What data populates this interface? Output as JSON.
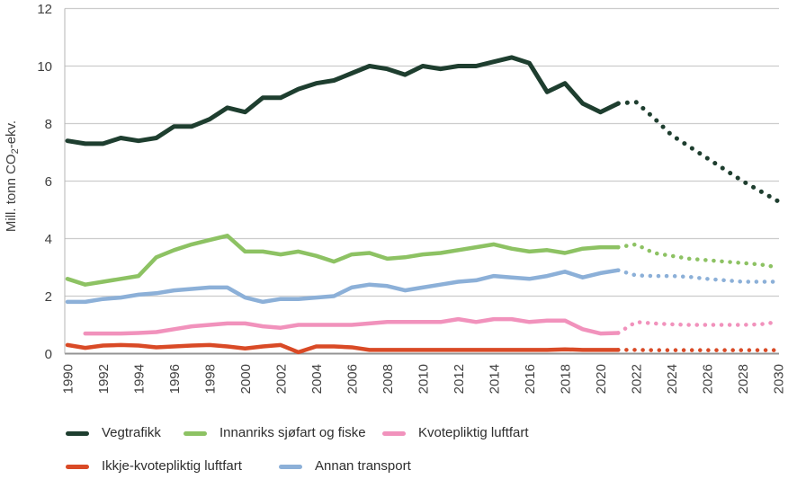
{
  "chart_data": {
    "type": "line",
    "ylabel": {
      "text": "Mill. tonn CO2-ekv.",
      "prefix": "Mill. tonn CO",
      "subscript": "2",
      "suffix": "-ekv."
    },
    "ylim": [
      0,
      12
    ],
    "y_ticks": [
      0,
      2,
      4,
      6,
      8,
      10,
      12
    ],
    "x_ticks": [
      1990,
      1992,
      1994,
      1996,
      1998,
      2000,
      2002,
      2004,
      2006,
      2008,
      2010,
      2012,
      2014,
      2016,
      2018,
      2020,
      2022,
      2024,
      2026,
      2028,
      2030
    ],
    "x_range": [
      1990,
      2030
    ],
    "history_end_year": 2021,
    "projection_start_year": 2022,
    "grid": "horizontal",
    "legend_position": "bottom",
    "series": [
      {
        "name": "Vegtrafikk",
        "color": "#1e3e2f",
        "start_year": 1990,
        "history": [
          7.4,
          7.3,
          7.3,
          7.5,
          7.4,
          7.5,
          7.9,
          7.9,
          8.15,
          8.55,
          8.4,
          8.9,
          8.9,
          9.2,
          9.4,
          9.5,
          9.75,
          10.0,
          9.9,
          9.7,
          10.0,
          9.9,
          10.0,
          10.0,
          10.15,
          10.3,
          10.1,
          9.1,
          9.4,
          8.7,
          8.4,
          8.7
        ],
        "projection": [
          8.75,
          8.2,
          7.6,
          7.2,
          6.8,
          6.4,
          6.0,
          5.65,
          5.3
        ]
      },
      {
        "name": "Innanriks sjøfart og fiske",
        "color": "#8dc263",
        "start_year": 1990,
        "history": [
          2.6,
          2.4,
          2.5,
          2.6,
          2.7,
          3.35,
          3.6,
          3.8,
          3.95,
          4.1,
          3.55,
          3.55,
          3.45,
          3.55,
          3.4,
          3.2,
          3.45,
          3.5,
          3.3,
          3.35,
          3.45,
          3.5,
          3.6,
          3.7,
          3.8,
          3.65,
          3.55,
          3.6,
          3.5,
          3.65,
          3.7,
          3.7
        ],
        "projection": [
          3.8,
          3.5,
          3.4,
          3.3,
          3.25,
          3.2,
          3.15,
          3.1,
          3.0
        ]
      },
      {
        "name": "Kvotepliktig luftfart",
        "color": "#f192bc",
        "start_year": 1991,
        "history": [
          0.7,
          0.7,
          0.7,
          0.72,
          0.75,
          0.85,
          0.95,
          1.0,
          1.05,
          1.05,
          0.95,
          0.9,
          1.0,
          1.0,
          1.0,
          1.0,
          1.05,
          1.1,
          1.1,
          1.1,
          1.1,
          1.2,
          1.1,
          1.2,
          1.2,
          1.1,
          1.15,
          1.15,
          0.85,
          0.7,
          0.72
        ],
        "projection": [
          1.1,
          1.05,
          1.02,
          1.0,
          1.0,
          1.0,
          1.0,
          1.02,
          1.1
        ]
      },
      {
        "name": "Ikkje-kvotepliktig luftfart",
        "color": "#d94a26",
        "start_year": 1990,
        "history": [
          0.3,
          0.2,
          0.28,
          0.3,
          0.28,
          0.22,
          0.25,
          0.28,
          0.3,
          0.25,
          0.18,
          0.25,
          0.3,
          0.05,
          0.25,
          0.25,
          0.22,
          0.13,
          0.13,
          0.13,
          0.13,
          0.13,
          0.13,
          0.13,
          0.13,
          0.13,
          0.13,
          0.13,
          0.15,
          0.13,
          0.13,
          0.13
        ],
        "projection": [
          0.13,
          0.12,
          0.12,
          0.12,
          0.12,
          0.12,
          0.12,
          0.12,
          0.12
        ]
      },
      {
        "name": "Annan transport",
        "color": "#8cb0d8",
        "start_year": 1990,
        "history": [
          1.8,
          1.8,
          1.9,
          1.95,
          2.05,
          2.1,
          2.2,
          2.25,
          2.3,
          2.3,
          1.95,
          1.8,
          1.9,
          1.9,
          1.95,
          2.0,
          2.3,
          2.4,
          2.35,
          2.2,
          2.3,
          2.4,
          2.5,
          2.55,
          2.7,
          2.65,
          2.6,
          2.7,
          2.85,
          2.65,
          2.8,
          2.9
        ],
        "projection": [
          2.72,
          2.7,
          2.7,
          2.67,
          2.6,
          2.55,
          2.5,
          2.5,
          2.5
        ]
      }
    ],
    "colors": {
      "gridline": "#cccccc",
      "zero_axis": "#949494",
      "left_axis": "#b5b5b5",
      "tick_text": "#3f3f3f",
      "legend_text": "#2e2e2e"
    }
  }
}
